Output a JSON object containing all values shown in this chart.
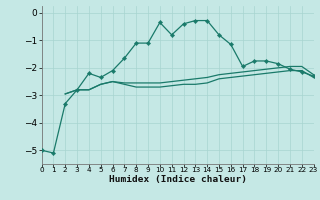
{
  "xlabel": "Humidex (Indice chaleur)",
  "background_color": "#c5e8e5",
  "grid_color": "#a8d5d0",
  "line_color": "#1a7a6a",
  "xlim": [
    0,
    23
  ],
  "ylim": [
    -5.5,
    0.25
  ],
  "yticks": [
    0,
    -1,
    -2,
    -3,
    -4,
    -5
  ],
  "xticks": [
    0,
    1,
    2,
    3,
    4,
    5,
    6,
    7,
    8,
    9,
    10,
    11,
    12,
    13,
    14,
    15,
    16,
    17,
    18,
    19,
    20,
    21,
    22,
    23
  ],
  "line1_x": [
    0,
    1,
    2,
    3,
    4,
    5,
    6,
    7,
    8,
    9,
    10,
    11,
    12,
    13,
    14,
    15,
    16,
    17,
    18,
    19,
    20,
    21,
    22,
    23
  ],
  "line1_y": [
    -5.0,
    -5.1,
    -3.3,
    -2.8,
    -2.2,
    -2.35,
    -2.1,
    -1.65,
    -1.1,
    -1.1,
    -0.35,
    -0.8,
    -0.4,
    -0.28,
    -0.28,
    -0.8,
    -1.15,
    -1.95,
    -1.75,
    -1.75,
    -1.85,
    -2.05,
    -2.15,
    -2.3
  ],
  "line2_x": [
    2,
    3,
    4,
    5,
    6,
    7,
    8,
    9,
    10,
    11,
    12,
    13,
    14,
    15,
    16,
    17,
    18,
    19,
    20,
    21,
    22,
    23
  ],
  "line2_y": [
    -2.95,
    -2.8,
    -2.8,
    -2.6,
    -2.5,
    -2.55,
    -2.55,
    -2.55,
    -2.55,
    -2.5,
    -2.45,
    -2.4,
    -2.35,
    -2.25,
    -2.2,
    -2.15,
    -2.1,
    -2.05,
    -2.0,
    -1.95,
    -1.95,
    -2.25
  ],
  "line3_x": [
    2,
    3,
    4,
    5,
    6,
    7,
    8,
    9,
    10,
    11,
    12,
    13,
    14,
    15,
    16,
    17,
    18,
    19,
    20,
    21,
    22,
    23
  ],
  "line3_y": [
    -2.95,
    -2.8,
    -2.8,
    -2.6,
    -2.5,
    -2.6,
    -2.7,
    -2.7,
    -2.7,
    -2.65,
    -2.6,
    -2.6,
    -2.55,
    -2.4,
    -2.35,
    -2.3,
    -2.25,
    -2.2,
    -2.15,
    -2.1,
    -2.1,
    -2.35
  ]
}
